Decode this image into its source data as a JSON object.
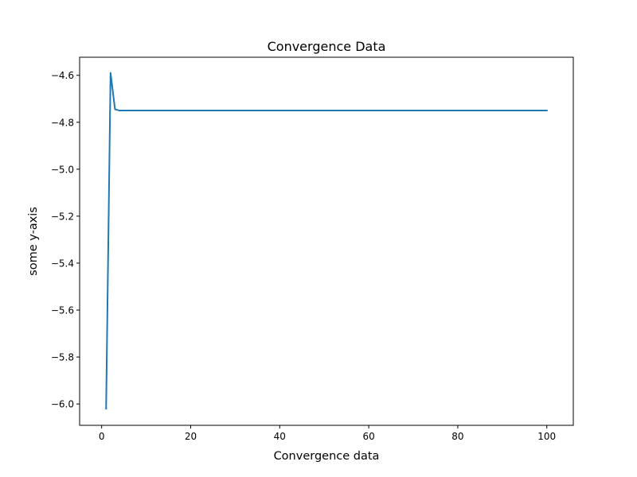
{
  "chart_data": {
    "type": "line",
    "title": "Convergence Data",
    "xlabel": "Convergence data",
    "ylabel": "some y-axis",
    "xlim": [
      -4.95,
      105.95
    ],
    "ylim": [
      -6.091,
      -4.523
    ],
    "xticks": [
      0,
      20,
      40,
      60,
      80,
      100
    ],
    "xtick_labels": [
      "0",
      "20",
      "40",
      "60",
      "80",
      "100"
    ],
    "yticks": [
      -6.0,
      -5.8,
      -5.6,
      -5.4,
      -5.2,
      -5.0,
      -4.8,
      -4.6
    ],
    "ytick_labels": [
      "−6.0",
      "−5.8",
      "−5.6",
      "−5.4",
      "−5.2",
      "−5.0",
      "−4.8",
      "−4.6"
    ],
    "grid": false,
    "legend": "none",
    "series": [
      {
        "color": "#1f77b4",
        "x": [
          1,
          2,
          3,
          4,
          5,
          6,
          100
        ],
        "y": [
          -6.02,
          -4.59,
          -4.745,
          -4.75,
          -4.75,
          -4.75,
          -4.75
        ]
      }
    ]
  }
}
